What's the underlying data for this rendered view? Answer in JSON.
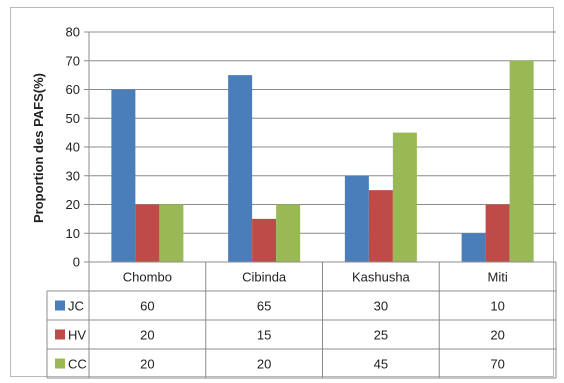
{
  "chart_data": {
    "type": "bar",
    "title": "",
    "xlabel": "",
    "ylabel": "Proportion des PAFS(%)",
    "ylim": [
      0,
      80
    ],
    "yticks": [
      0,
      10,
      20,
      30,
      40,
      50,
      60,
      70,
      80
    ],
    "grid": true,
    "legend": "data-table-left",
    "categories": [
      "Chombo",
      "Cibinda",
      "Kashusha",
      "Miti"
    ],
    "series": [
      {
        "name": "JC",
        "values": [
          60,
          65,
          30,
          10
        ],
        "color": "#4a7ebb"
      },
      {
        "name": "HV",
        "values": [
          20,
          15,
          25,
          20
        ],
        "color": "#be4b48"
      },
      {
        "name": "CC",
        "values": [
          20,
          20,
          45,
          70
        ],
        "color": "#98b954"
      }
    ]
  }
}
